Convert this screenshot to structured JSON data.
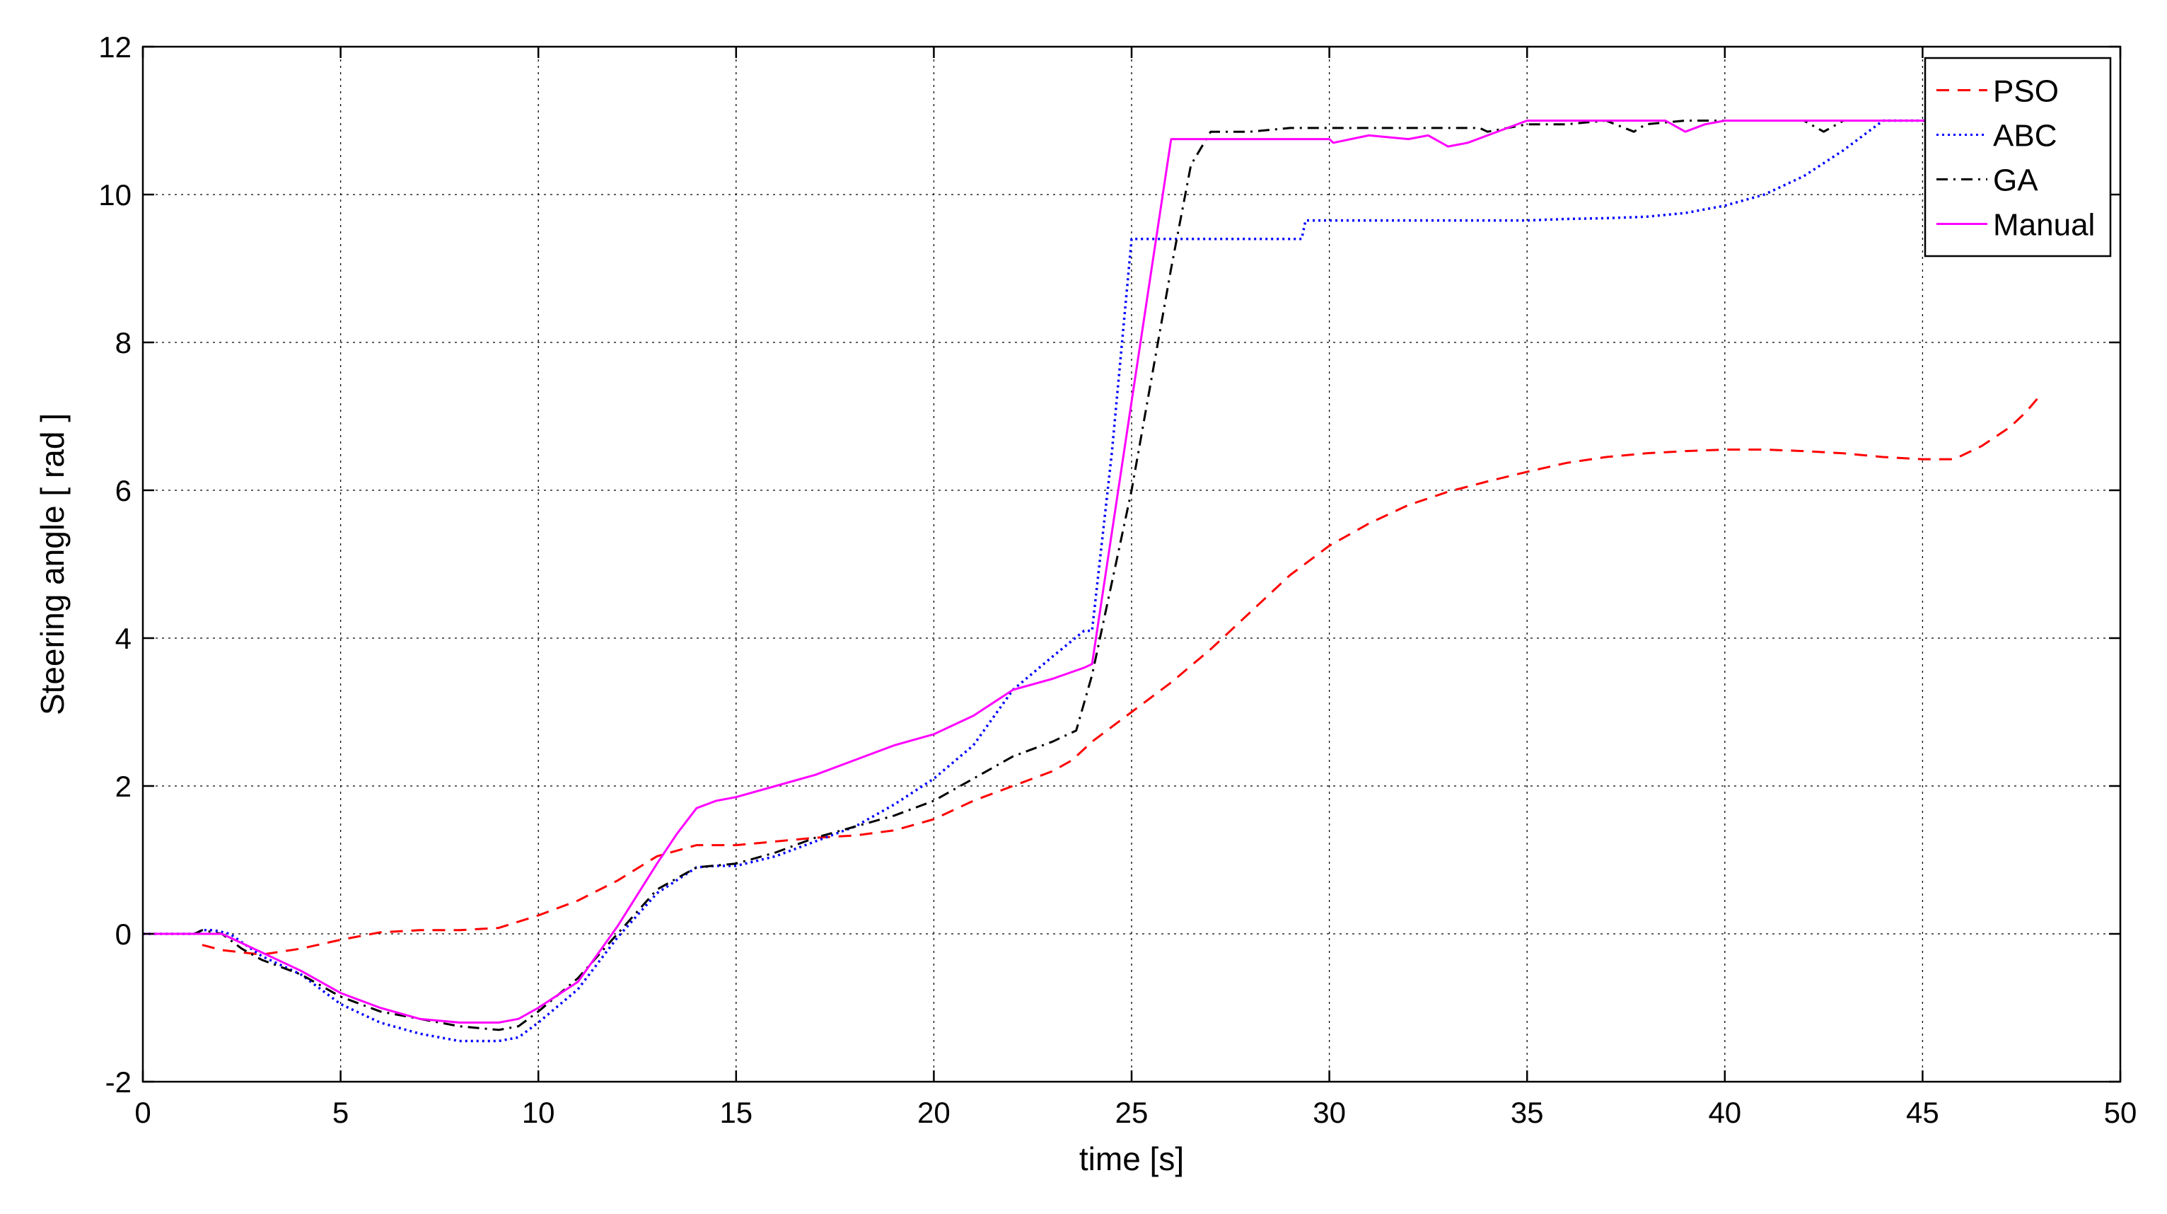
{
  "chart_data": {
    "type": "line",
    "title": "",
    "xlabel": "time [s]",
    "ylabel": "Steering angle [ rad ]",
    "xlim": [
      0,
      50
    ],
    "ylim": [
      -2,
      12
    ],
    "xticks": [
      0,
      5,
      10,
      15,
      20,
      25,
      30,
      35,
      40,
      45,
      50
    ],
    "yticks": [
      -2,
      0,
      2,
      4,
      6,
      8,
      10,
      12
    ],
    "grid": true,
    "legend_position": "top-right",
    "series": [
      {
        "name": "PSO",
        "color": "#ff0000",
        "style": "dashed",
        "x": [
          1.5,
          2,
          3,
          4,
          5,
          6,
          7,
          8,
          9,
          10,
          11,
          12,
          13,
          14,
          15,
          16,
          17,
          18,
          19,
          20,
          21,
          22,
          23,
          23.5,
          24,
          25,
          26,
          27,
          28,
          29,
          30,
          31,
          32,
          33,
          34,
          35,
          36,
          37,
          38,
          39,
          40,
          41,
          42,
          43,
          44,
          45,
          45.8,
          46.5,
          47.2,
          47.6,
          48
        ],
        "y": [
          -0.15,
          -0.22,
          -0.28,
          -0.2,
          -0.08,
          0.02,
          0.05,
          0.05,
          0.08,
          0.25,
          0.45,
          0.72,
          1.05,
          1.2,
          1.2,
          1.25,
          1.3,
          1.33,
          1.4,
          1.55,
          1.8,
          2.0,
          2.2,
          2.35,
          2.6,
          3.0,
          3.4,
          3.85,
          4.35,
          4.85,
          5.25,
          5.55,
          5.8,
          5.98,
          6.12,
          6.25,
          6.37,
          6.45,
          6.5,
          6.53,
          6.55,
          6.55,
          6.53,
          6.5,
          6.45,
          6.42,
          6.42,
          6.6,
          6.85,
          7.05,
          7.3
        ]
      },
      {
        "name": "ABC",
        "color": "#0000ff",
        "style": "dotted",
        "x": [
          0,
          1.3,
          1.5,
          1.8,
          2.2,
          2.6,
          3,
          4,
          5,
          6,
          7,
          8,
          9,
          9.5,
          10,
          11,
          12,
          13,
          14,
          14.5,
          15,
          16,
          17,
          18,
          19,
          20,
          21,
          22,
          23,
          23.8,
          24,
          24.5,
          25,
          25.5,
          26,
          27,
          28,
          29.3,
          29.4,
          30,
          31,
          32,
          33,
          34,
          35,
          36,
          37,
          38,
          39,
          40,
          41,
          42,
          43,
          44,
          45,
          46,
          47,
          48
        ],
        "y": [
          0,
          0,
          0.05,
          0.05,
          0,
          -0.15,
          -0.3,
          -0.55,
          -0.95,
          -1.2,
          -1.35,
          -1.45,
          -1.45,
          -1.4,
          -1.2,
          -0.75,
          -0.05,
          0.55,
          0.9,
          0.92,
          0.92,
          1.05,
          1.25,
          1.45,
          1.75,
          2.1,
          2.55,
          3.3,
          3.75,
          4.1,
          4.1,
          6.5,
          9.4,
          9.4,
          9.4,
          9.4,
          9.4,
          9.4,
          9.65,
          9.65,
          9.65,
          9.65,
          9.65,
          9.65,
          9.65,
          9.67,
          9.68,
          9.7,
          9.75,
          9.85,
          10.0,
          10.25,
          10.6,
          11.0,
          11.0,
          11.0,
          11.0,
          11.0
        ]
      },
      {
        "name": "GA",
        "color": "#000000",
        "style": "dashdot",
        "x": [
          0,
          1.3,
          1.5,
          2,
          2.5,
          3,
          4,
          5,
          6,
          7,
          8,
          9,
          9.5,
          10,
          11,
          12,
          13,
          14,
          15,
          16,
          17,
          18,
          19,
          20,
          21,
          22,
          23,
          23.6,
          24,
          25,
          26,
          26.5,
          27,
          28,
          29,
          30,
          31,
          32,
          33,
          33.8,
          34,
          35,
          36,
          37,
          37.7,
          38,
          39,
          40,
          41,
          42,
          42.5,
          43,
          44,
          45,
          46,
          47,
          48
        ],
        "y": [
          0,
          0,
          0.05,
          0,
          -0.2,
          -0.35,
          -0.55,
          -0.85,
          -1.05,
          -1.15,
          -1.25,
          -1.3,
          -1.25,
          -1.05,
          -0.6,
          0.0,
          0.6,
          0.9,
          0.95,
          1.1,
          1.3,
          1.45,
          1.6,
          1.8,
          2.1,
          2.4,
          2.6,
          2.75,
          3.5,
          6.0,
          9.0,
          10.4,
          10.85,
          10.85,
          10.9,
          10.9,
          10.9,
          10.9,
          10.9,
          10.9,
          10.85,
          10.95,
          10.95,
          11.0,
          10.85,
          10.95,
          11.0,
          11.0,
          11.0,
          11.0,
          10.85,
          11.0,
          11.0,
          11.0,
          11.0,
          11.0,
          11.0
        ]
      },
      {
        "name": "Manual",
        "color": "#ff00ff",
        "style": "solid",
        "x": [
          0,
          1.5,
          2,
          3,
          4,
          5,
          6,
          7,
          8,
          9,
          9.5,
          10,
          11,
          12,
          13,
          13.5,
          14,
          14.5,
          15,
          16,
          17,
          18,
          19,
          20,
          21,
          22,
          23,
          23.8,
          24,
          25,
          26,
          26.3,
          27,
          28,
          29,
          30,
          30.1,
          31,
          32,
          32.5,
          33,
          33.5,
          34,
          35,
          36,
          37,
          38,
          38.5,
          39,
          39.5,
          40,
          41,
          42,
          43,
          44,
          45,
          46,
          47,
          48
        ],
        "y": [
          0,
          0,
          0.0,
          -0.25,
          -0.5,
          -0.8,
          -1.0,
          -1.15,
          -1.2,
          -1.2,
          -1.15,
          -1.0,
          -0.65,
          0.1,
          0.95,
          1.35,
          1.7,
          1.8,
          1.85,
          2.0,
          2.15,
          2.35,
          2.55,
          2.7,
          2.95,
          3.3,
          3.45,
          3.6,
          3.65,
          7.2,
          10.75,
          10.75,
          10.75,
          10.75,
          10.75,
          10.75,
          10.7,
          10.8,
          10.75,
          10.8,
          10.65,
          10.7,
          10.8,
          11.0,
          11.0,
          11.0,
          11.0,
          11.0,
          10.85,
          10.95,
          11.0,
          11.0,
          11.0,
          11.0,
          11.0,
          11.0,
          11.0,
          11.0,
          11.0
        ]
      }
    ]
  }
}
